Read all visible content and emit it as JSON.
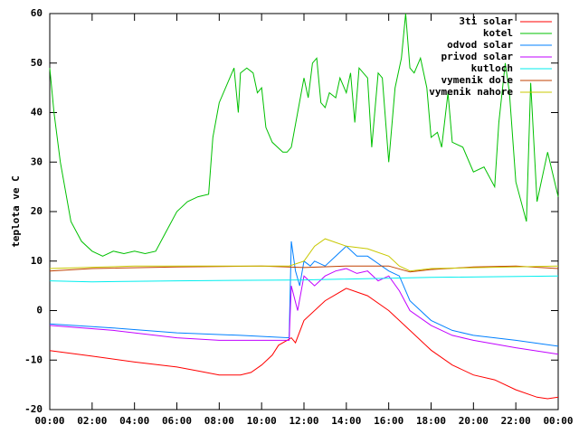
{
  "chart_data": {
    "type": "line",
    "ylabel": "teplota ve C",
    "xlim": [
      0,
      24
    ],
    "xticks": [
      {
        "value": 0,
        "label": "00:00"
      },
      {
        "value": 2,
        "label": "02:00"
      },
      {
        "value": 4,
        "label": "04:00"
      },
      {
        "value": 6,
        "label": "06:00"
      },
      {
        "value": 8,
        "label": "08:00"
      },
      {
        "value": 10,
        "label": "10:00"
      },
      {
        "value": 12,
        "label": "12:00"
      },
      {
        "value": 14,
        "label": "14:00"
      },
      {
        "value": 16,
        "label": "16:00"
      },
      {
        "value": 18,
        "label": "18:00"
      },
      {
        "value": 20,
        "label": "20:00"
      },
      {
        "value": 22,
        "label": "22:00"
      },
      {
        "value": 24,
        "label": "00:00"
      }
    ],
    "ylim": [
      -20,
      60
    ],
    "yticks": [
      -20,
      -10,
      0,
      10,
      20,
      30,
      40,
      50,
      60
    ],
    "grid": false,
    "legend": "top-right",
    "series": [
      {
        "name": "3ti solar",
        "color": "#ff0000",
        "x": [
          0,
          2,
          4,
          6,
          7,
          8,
          9,
          9.5,
          10,
          10.5,
          10.8,
          11.2,
          11.4,
          11.6,
          12,
          13,
          14,
          15,
          16,
          17,
          18,
          19,
          20,
          21,
          22,
          23,
          23.5,
          24
        ],
        "values": [
          -8.1,
          -9.2,
          -10.4,
          -11.4,
          -12.2,
          -13,
          -13,
          -12.5,
          -11,
          -9,
          -7,
          -6,
          -5.5,
          -6.5,
          -2,
          2,
          4.5,
          3,
          0,
          -4,
          -8,
          -11,
          -13,
          -14,
          -16,
          -17.5,
          -17.8,
          -17.5
        ]
      },
      {
        "name": "kotel",
        "color": "#00c000",
        "x": [
          0,
          0.2,
          0.5,
          1,
          1.5,
          2,
          2.5,
          3,
          3.5,
          4,
          4.5,
          5,
          5.5,
          6,
          6.5,
          7,
          7.5,
          7.7,
          8,
          8.5,
          8.7,
          8.9,
          9,
          9.3,
          9.6,
          9.8,
          10,
          10.2,
          10.5,
          11,
          11.2,
          11.4,
          11.7,
          12,
          12.2,
          12.4,
          12.6,
          12.8,
          13,
          13.2,
          13.5,
          13.7,
          14,
          14.2,
          14.4,
          14.6,
          15,
          15.2,
          15.5,
          15.7,
          16,
          16.3,
          16.6,
          16.8,
          17,
          17.2,
          17.5,
          17.8,
          18,
          18.3,
          18.5,
          18.8,
          19,
          19.5,
          20,
          20.5,
          21,
          21.2,
          21.5,
          21.7,
          22,
          22.5,
          22.7,
          23,
          23.5,
          24
        ],
        "values": [
          49,
          40,
          30,
          18,
          14,
          12,
          11,
          12,
          11.5,
          12,
          11.5,
          12,
          16,
          20,
          22,
          23,
          23.5,
          35,
          42,
          47,
          49,
          40,
          48,
          49,
          48,
          44,
          45,
          37,
          34,
          32,
          32,
          33,
          40,
          47,
          43,
          50,
          51,
          42,
          41,
          44,
          43,
          47,
          44,
          48,
          38,
          49,
          47,
          33,
          48,
          47,
          30,
          45,
          51,
          60,
          49,
          48,
          51,
          45,
          35,
          36,
          33,
          44,
          34,
          33,
          28,
          29,
          25,
          38,
          50,
          44,
          26,
          18,
          46,
          22,
          32,
          23
        ]
      },
      {
        "name": "odvod solar",
        "color": "#0080ff",
        "x": [
          0,
          3,
          6,
          9,
          11.3,
          11.4,
          11.6,
          11.8,
          12,
          12.3,
          12.5,
          13,
          13.5,
          14,
          14.5,
          15,
          15.5,
          16,
          16.5,
          17,
          18,
          19,
          20,
          22,
          24
        ],
        "values": [
          -2.7,
          -3.5,
          -4.5,
          -5,
          -5.5,
          14,
          8,
          5,
          10,
          9,
          10,
          9,
          11,
          13,
          11,
          11,
          9.5,
          8,
          7,
          2,
          -2,
          -4,
          -5,
          -6,
          -7.2
        ]
      },
      {
        "name": "privod solar",
        "color": "#c000ff",
        "x": [
          0,
          3,
          6,
          8,
          11.3,
          11.4,
          11.7,
          12,
          12.5,
          13,
          13.5,
          14,
          14.5,
          15,
          15.5,
          16,
          16.5,
          17,
          18,
          19,
          20,
          22,
          24
        ],
        "values": [
          -3,
          -4,
          -5.5,
          -6,
          -6,
          5,
          0,
          7,
          5,
          7,
          8,
          8.5,
          7.5,
          8,
          6,
          7,
          4,
          0,
          -3,
          -5,
          -6,
          -7.5,
          -8.8
        ]
      },
      {
        "name": "kutloch",
        "color": "#00eeee",
        "x": [
          0,
          2,
          6,
          12,
          18,
          24
        ],
        "values": [
          6,
          5.8,
          6,
          6.2,
          6.7,
          7
        ]
      },
      {
        "name": "vymenik dole",
        "color": "#c04000",
        "x": [
          0,
          2,
          6,
          10,
          12,
          14,
          16,
          17,
          18,
          20,
          22,
          24
        ],
        "values": [
          8,
          8.5,
          8.8,
          9,
          8.7,
          9,
          9,
          7.8,
          8.3,
          8.8,
          9,
          8.5
        ]
      },
      {
        "name": "vymenik nahore",
        "color": "#c8c800",
        "x": [
          0,
          4,
          10,
          11.3,
          12,
          12.5,
          13,
          14,
          15,
          16,
          16.5,
          17,
          18,
          24
        ],
        "values": [
          8.5,
          9,
          9,
          9,
          10,
          13,
          14.5,
          13,
          12.5,
          11,
          9,
          8,
          8.5,
          9
        ]
      }
    ]
  }
}
